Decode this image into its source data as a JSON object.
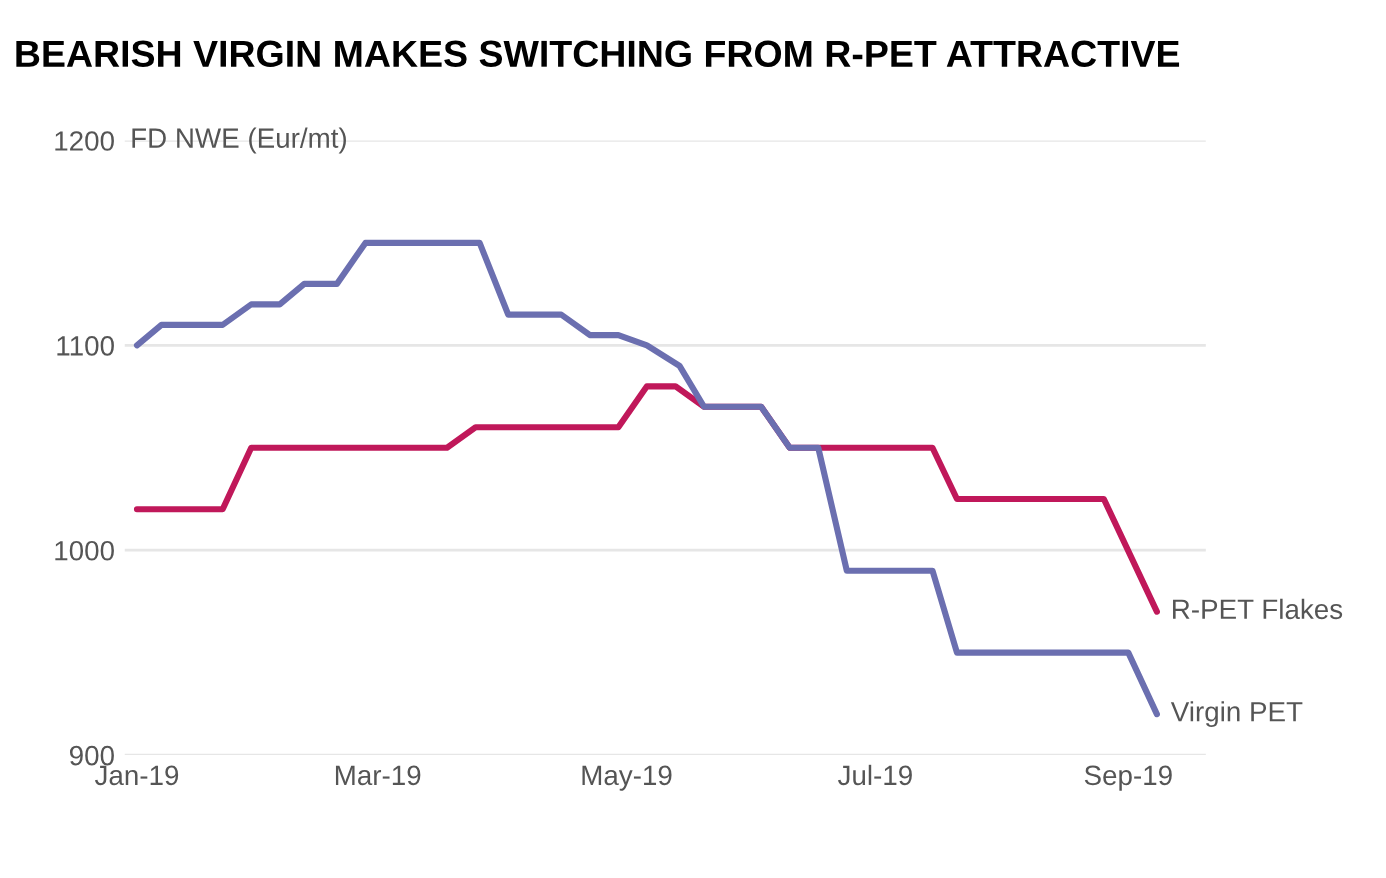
{
  "chart_data": {
    "type": "line",
    "title": "BEARISH VIRGIN MAKES SWITCHING FROM R-PET ATTRACTIVE",
    "ylabel": "FD NWE (Eur/mt)",
    "series": [
      {
        "name": "R-PET Flakes",
        "color": "#c0185a",
        "x": [
          "2019-01-01",
          "2019-01-22",
          "2019-01-29",
          "2019-03-18",
          "2019-03-25",
          "2019-04-29",
          "2019-05-06",
          "2019-05-13",
          "2019-05-20",
          "2019-06-03",
          "2019-06-10",
          "2019-07-15",
          "2019-07-21",
          "2019-08-26",
          "2019-09-08"
        ],
        "values": [
          1020,
          1020,
          1050,
          1050,
          1060,
          1060,
          1080,
          1080,
          1070,
          1070,
          1050,
          1050,
          1025,
          1025,
          970
        ]
      },
      {
        "name": "Virgin PET",
        "color": "#6b6fb0",
        "x": [
          "2019-01-01",
          "2019-01-07",
          "2019-01-22",
          "2019-01-29",
          "2019-02-05",
          "2019-02-11",
          "2019-02-19",
          "2019-02-26",
          "2019-03-26",
          "2019-04-02",
          "2019-04-15",
          "2019-04-22",
          "2019-04-29",
          "2019-05-06",
          "2019-05-14",
          "2019-05-20",
          "2019-06-03",
          "2019-06-10",
          "2019-06-17",
          "2019-06-24",
          "2019-07-15",
          "2019-07-21",
          "2019-09-01",
          "2019-09-08"
        ],
        "values": [
          1100,
          1110,
          1110,
          1120,
          1120,
          1130,
          1130,
          1150,
          1150,
          1115,
          1115,
          1105,
          1105,
          1100,
          1090,
          1070,
          1070,
          1050,
          1050,
          990,
          990,
          950,
          950,
          920
        ]
      }
    ],
    "xlim": [
      "2018-12-29",
      "2019-09-20"
    ],
    "xticks": [
      {
        "value": "2019-01-01",
        "label": "Jan-19"
      },
      {
        "value": "2019-03-01",
        "label": "Mar-19"
      },
      {
        "value": "2019-05-01",
        "label": "May-19"
      },
      {
        "value": "2019-07-01",
        "label": "Jul-19"
      },
      {
        "value": "2019-09-01",
        "label": "Sep-19"
      }
    ],
    "ylim": [
      900,
      1200
    ],
    "yticks": [
      900,
      1000,
      1100,
      1200
    ],
    "grid": "y",
    "line_style": "solid",
    "legend": false
  }
}
